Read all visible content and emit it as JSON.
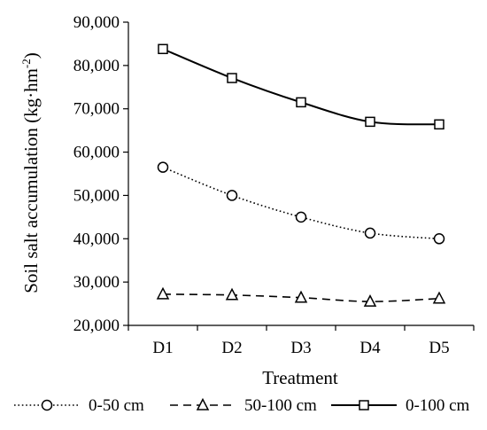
{
  "chart_data": {
    "type": "line",
    "categories": [
      "D1",
      "D2",
      "D3",
      "D4",
      "D5"
    ],
    "series": [
      {
        "name": "0-50 cm",
        "values": [
          56500,
          50000,
          45000,
          41300,
          40000
        ],
        "line_style": "dotted",
        "marker": "circle"
      },
      {
        "name": "50-100 cm",
        "values": [
          27200,
          27000,
          26400,
          25500,
          26200
        ],
        "line_style": "dashed",
        "marker": "triangle"
      },
      {
        "name": "0-100 cm",
        "values": [
          83800,
          77100,
          71500,
          67000,
          66400
        ],
        "line_style": "solid",
        "marker": "square"
      }
    ],
    "xlabel": "Treatment",
    "ylabel": "Soil salt accumulation (kg·hm",
    "ylabel_sup": "-2",
    "ylabel_close": ")",
    "ylim": [
      20000,
      90000
    ],
    "yticks": [
      20000,
      30000,
      40000,
      50000,
      60000,
      70000,
      80000,
      90000
    ],
    "ytick_labels": [
      "20,000",
      "30,000",
      "40,000",
      "50,000",
      "60,000",
      "70,000",
      "80,000",
      "90,000"
    ],
    "grid": false,
    "legend_position": "bottom",
    "colors": {
      "line": "#000000",
      "marker_fill": "#ffffff"
    }
  }
}
